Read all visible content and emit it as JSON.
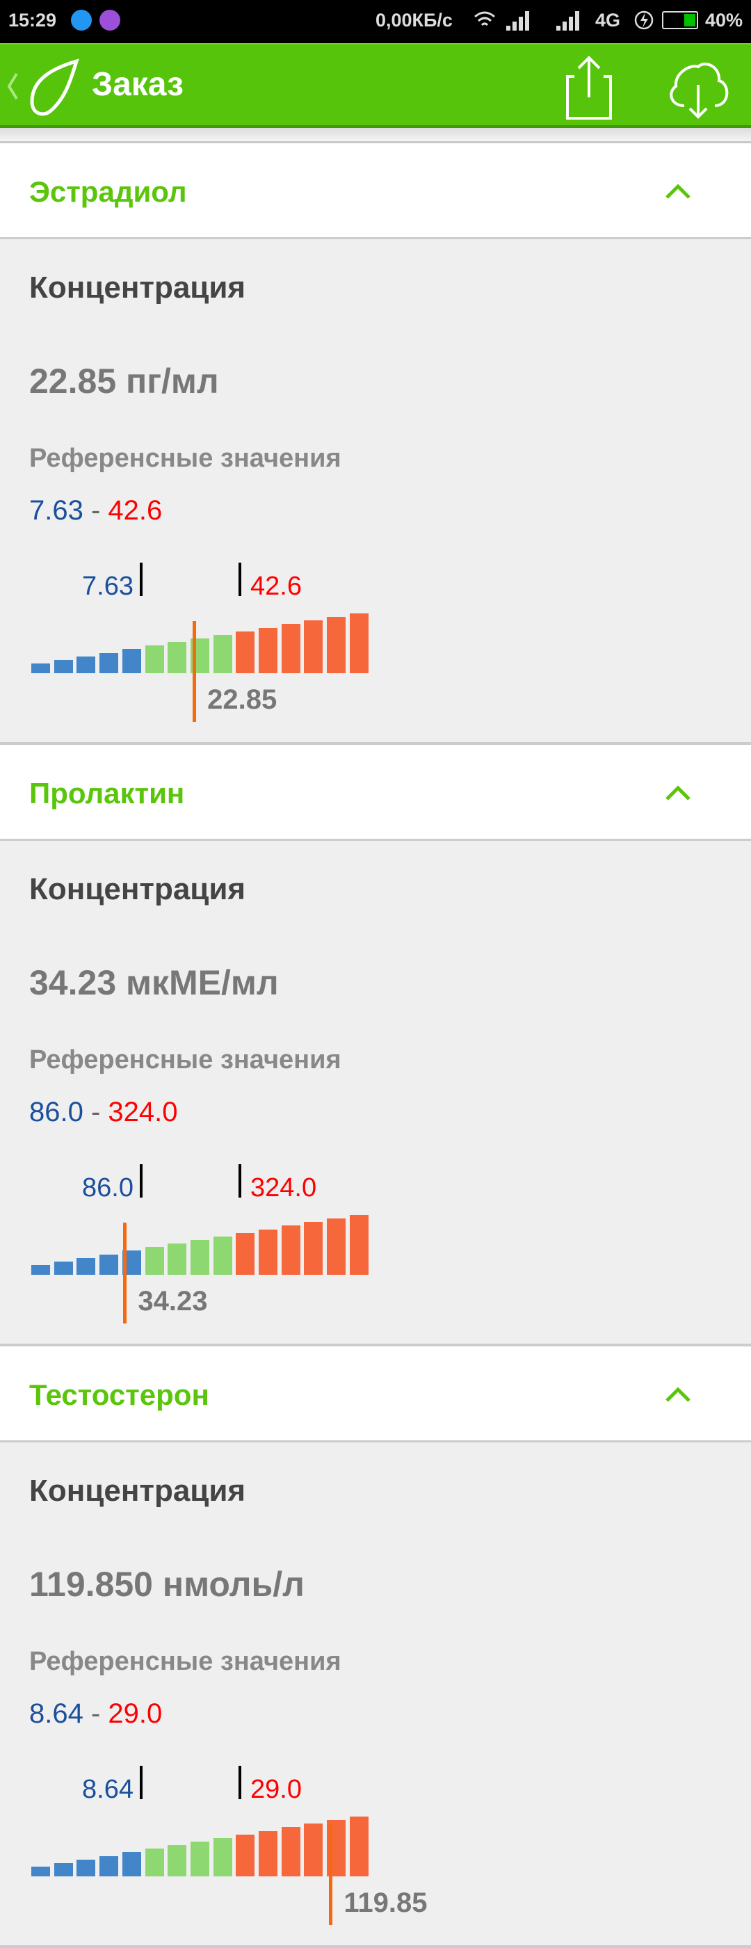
{
  "status_bar": {
    "time": "15:29",
    "network_speed": "0,00КБ/с",
    "network_type": "4G",
    "battery": "40%",
    "battery_level": 0.4
  },
  "app_bar": {
    "title": "Заказ",
    "icons": [
      "back-chevron-icon",
      "leaf-logo-icon",
      "share-icon",
      "cloud-download-icon"
    ]
  },
  "colors": {
    "brand": "#56c40a",
    "low": "#1a4f9c",
    "high": "#ff0000",
    "bar_low": "#4285c8",
    "bar_normal": "#8ed872",
    "bar_high": "#f7673c",
    "marker": "#f36a10"
  },
  "sections": [
    {
      "name": "Эстрадиол",
      "label": "Концентрация",
      "value": "22.85 пг/мл",
      "ref_label": "Референсные значения",
      "ref_low": "7.63",
      "ref_sep": " - ",
      "ref_high": "42.6",
      "marker_value": "22.85"
    },
    {
      "name": "Пролактин",
      "label": "Концентрация",
      "value": "34.23 мкМЕ/мл",
      "ref_label": "Референсные значения",
      "ref_low": "86.0",
      "ref_sep": " - ",
      "ref_high": "324.0",
      "marker_value": "34.23"
    },
    {
      "name": "Тестостерон",
      "label": "Концентрация",
      "value": "119.850 нмоль/л",
      "ref_label": "Референсные значения",
      "ref_low": "8.64",
      "ref_sep": " - ",
      "ref_high": "29.0",
      "marker_value": "119.85"
    }
  ]
}
